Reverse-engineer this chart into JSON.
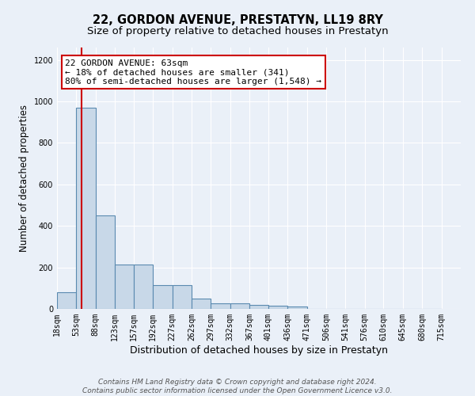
{
  "title": "22, GORDON AVENUE, PRESTATYN, LL19 8RY",
  "subtitle": "Size of property relative to detached houses in Prestatyn",
  "xlabel": "Distribution of detached houses by size in Prestatyn",
  "ylabel": "Number of detached properties",
  "bin_edges": [
    18,
    53,
    88,
    123,
    157,
    192,
    227,
    262,
    297,
    332,
    367,
    401,
    436,
    471,
    506,
    541,
    576,
    610,
    645,
    680,
    715
  ],
  "bar_heights": [
    80,
    970,
    450,
    215,
    215,
    115,
    115,
    50,
    25,
    25,
    20,
    15,
    10,
    0,
    0,
    0,
    0,
    0,
    0,
    0
  ],
  "bar_color": "#c8d8e8",
  "bar_edge_color": "#5a8ab0",
  "property_size": 63,
  "red_line_color": "#cc0000",
  "annotation_line1": "22 GORDON AVENUE: 63sqm",
  "annotation_line2": "← 18% of detached houses are smaller (341)",
  "annotation_line3": "80% of semi-detached houses are larger (1,548) →",
  "annotation_box_color": "white",
  "annotation_box_edge_color": "#cc0000",
  "ylim": [
    0,
    1260
  ],
  "yticks": [
    0,
    200,
    400,
    600,
    800,
    1000,
    1200
  ],
  "background_color": "#eaf0f8",
  "grid_color": "white",
  "footer_text": "Contains HM Land Registry data © Crown copyright and database right 2024.\nContains public sector information licensed under the Open Government Licence v3.0.",
  "title_fontsize": 10.5,
  "subtitle_fontsize": 9.5,
  "ylabel_fontsize": 8.5,
  "xlabel_fontsize": 9,
  "tick_fontsize": 7,
  "annotation_fontsize": 8,
  "footer_fontsize": 6.5
}
